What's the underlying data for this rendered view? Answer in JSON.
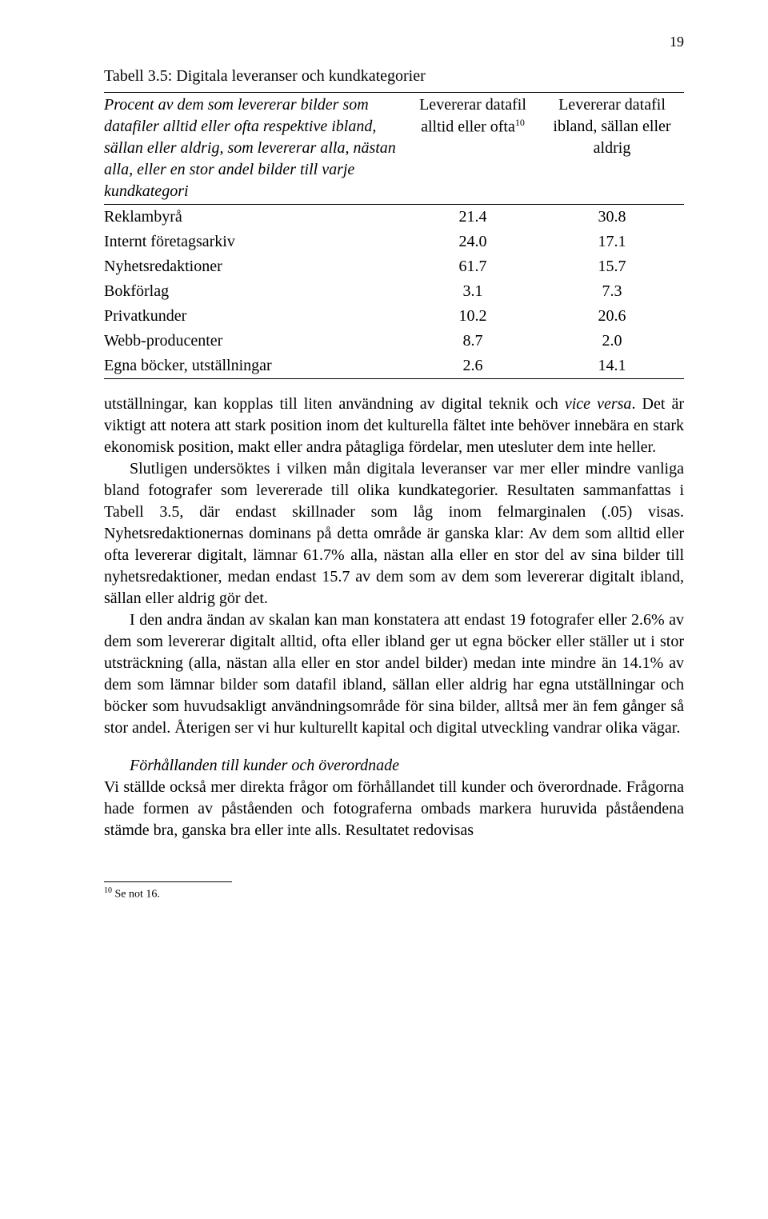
{
  "page_number": "19",
  "table": {
    "title": "Tabell 3.5: Digitala leveranser och kundkategorier",
    "header_left": "Procent av dem som levererar bilder som datafiler alltid eller ofta respektive ibland, sällan eller aldrig, som levererar alla, nästan alla, eller en stor andel bilder till varje kundkategori",
    "header_mid_pre": "Levererar datafil alltid eller ofta",
    "header_mid_sup": "10",
    "header_right": "Levererar datafil ibland, sällan eller aldrig",
    "rows": [
      {
        "label": "Reklambyrå",
        "v1": "21.4",
        "v2": "30.8"
      },
      {
        "label": "Internt företagsarkiv",
        "v1": "24.0",
        "v2": "17.1"
      },
      {
        "label": "Nyhetsredaktioner",
        "v1": "61.7",
        "v2": "15.7"
      },
      {
        "label": "Bokförlag",
        "v1": "3.1",
        "v2": "7.3"
      },
      {
        "label": "Privatkunder",
        "v1": "10.2",
        "v2": "20.6"
      },
      {
        "label": "Webb-producenter",
        "v1": "8.7",
        "v2": "2.0"
      },
      {
        "label": "Egna böcker, utställningar",
        "v1": "2.6",
        "v2": "14.1"
      }
    ]
  },
  "body": {
    "p1a": "utställningar, kan kopplas till liten användning av digital teknik och ",
    "p1_italic": "vice versa",
    "p1b": ". Det är viktigt att notera att stark position inom det kulturella fältet inte behöver innebära en stark ekonomisk position, makt eller andra påtagliga fördelar, men utesluter dem inte heller.",
    "p2": "Slutligen undersöktes i vilken mån digitala leveranser var mer eller mindre vanliga bland fotografer som levererade till olika kundkategorier. Resultaten sammanfattas i Tabell 3.5, där endast skillnader som låg inom felmarginalen (.05) visas. Nyhetsredaktionernas dominans på detta område är ganska klar: Av dem som alltid eller ofta levererar digitalt, lämnar 61.7% alla, nästan alla eller en stor del av sina bilder till nyhetsredaktioner, medan endast 15.7 av dem som av dem som levererar digitalt ibland, sällan eller aldrig gör det.",
    "p3": "I den andra ändan av skalan kan man konstatera att endast 19 fotografer eller 2.6%  av dem som levererar digitalt alltid, ofta eller ibland ger ut egna böcker eller ställer ut i stor utsträckning (alla, nästan alla eller en stor andel bilder) medan inte mindre än 14.1% av dem som lämnar bilder som datafil ibland, sällan eller aldrig har egna utställningar och böcker som huvudsakligt användningsområde för sina bilder, alltså mer än fem gånger så stor andel. Återigen ser vi hur kulturellt kapital och digital utveckling vandrar olika vägar.",
    "subhead": "Förhållanden till kunder och överordnade",
    "p4": "Vi ställde också mer direkta frågor om förhållandet till kunder och överordnade. Frågorna hade formen av påståenden och fotograferna ombads markera huruvida påståendena stämde bra, ganska bra eller inte alls. Resultatet redovisas"
  },
  "footnote": {
    "num": "10",
    "text": " Se not 16."
  }
}
